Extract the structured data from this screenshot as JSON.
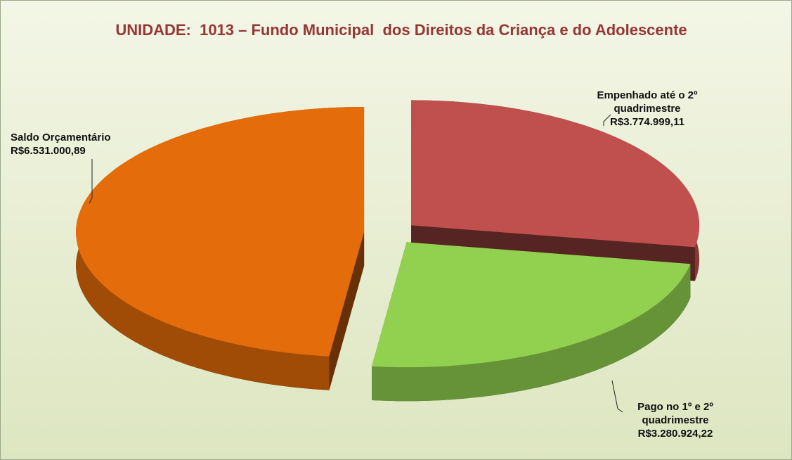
{
  "chart_data": {
    "type": "pie",
    "title": "UNIDADE:  1013 – Fundo Municipal  dos Direitos da Criança e do Adolescente",
    "categories": [
      "Empenhado até o 2º quadrimestre",
      "Pago no 1º e 2º quadrimestre",
      "Saldo Orçamentário"
    ],
    "values": [
      3774999.11,
      3280924.22,
      6531000.89
    ],
    "value_labels": [
      "R$3.774.999,11",
      "R$3.280.924,22",
      "R$6.531.000,89"
    ],
    "colors": [
      "#c0504d",
      "#92d050",
      "#e46c0a"
    ]
  }
}
